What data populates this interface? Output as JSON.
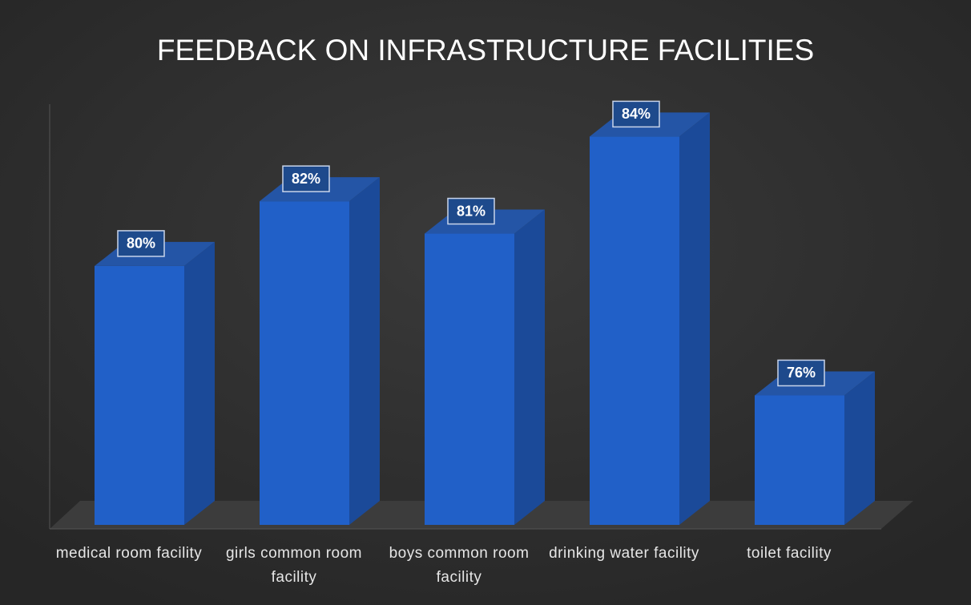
{
  "chart_data": {
    "type": "bar3d",
    "title": "FEEDBACK ON INFRASTRUCTURE FACILITIES",
    "categories": [
      "medical room facility",
      "girls common room facility",
      "boys common room facility",
      "drinking water facility",
      "toilet facility"
    ],
    "values": [
      80,
      82,
      81,
      84,
      76
    ],
    "value_labels": [
      "80%",
      "82%",
      "81%",
      "84%",
      "76%"
    ],
    "color": "#2160c8",
    "ylim": [
      72,
      85
    ]
  }
}
